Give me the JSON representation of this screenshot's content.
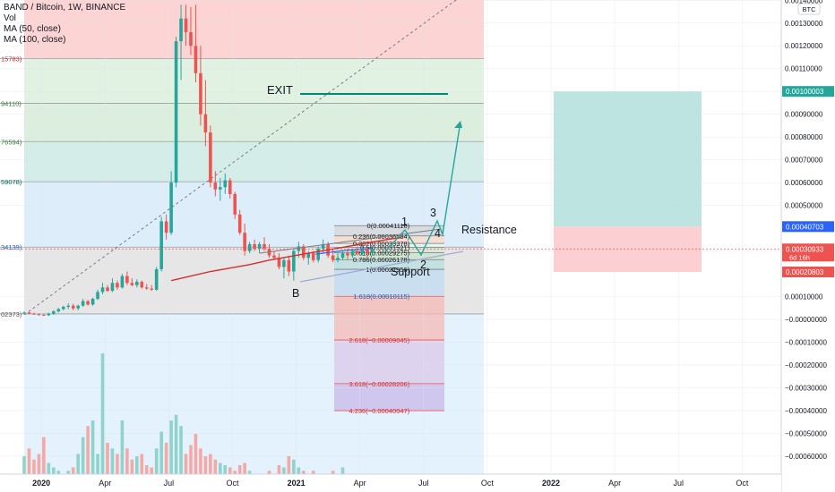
{
  "header": {
    "symbol_line": "BAND / Bitcoin, 1W, BINANCE",
    "vol_label": "Vol",
    "ma50_label": "MA (50, close)",
    "ma100_label": "MA (100, close)"
  },
  "chart_data": {
    "type": "candlestick",
    "currency_badge": "BTC",
    "y_axis": {
      "range": [
        -0.0007,
        0.00138
      ],
      "ticks": [
        {
          "v": 0.0014,
          "label": "0.00140000"
        },
        {
          "v": 0.0013,
          "label": "0.00130000"
        },
        {
          "v": 0.0012,
          "label": "0.00120000"
        },
        {
          "v": 0.0011,
          "label": "0.00110000"
        },
        {
          "v": 0.001,
          "label": "0.00100000"
        },
        {
          "v": 0.0009,
          "label": "0.00090000"
        },
        {
          "v": 0.0008,
          "label": "0.00080000"
        },
        {
          "v": 0.0007,
          "label": "0.00070000"
        },
        {
          "v": 0.0006,
          "label": "0.00060000"
        },
        {
          "v": 0.0005,
          "label": "0.00050000"
        },
        {
          "v": 0.0003,
          "label": "0.00030000"
        },
        {
          "v": 0.0001,
          "label": "0.00010000"
        },
        {
          "v": 0.0,
          "label": "−0.00000000"
        },
        {
          "v": -0.0001,
          "label": "−0.00010000"
        },
        {
          "v": -0.0002,
          "label": "−0.00020000"
        },
        {
          "v": -0.0003,
          "label": "−0.00030000"
        },
        {
          "v": -0.0004,
          "label": "−0.00040000"
        },
        {
          "v": -0.0005,
          "label": "−0.00050000"
        },
        {
          "v": -0.0006,
          "label": "−0.00060000"
        }
      ],
      "price_tags": [
        {
          "v": 0.001,
          "label": "0.00100003",
          "color": "#26a69a"
        },
        {
          "v": 0.000407,
          "label": "0.00040703",
          "color": "#2962ff"
        },
        {
          "v": 0.000309,
          "label": "0.00030933",
          "sub": "6d 16h",
          "color": "#ef5350"
        },
        {
          "v": 0.000208,
          "label": "0.00020803",
          "color": "#ef5350"
        }
      ]
    },
    "x_axis": {
      "ticks": [
        {
          "t": 3.5,
          "label": "2020",
          "bold": true
        },
        {
          "t": 16.5,
          "label": "Apr"
        },
        {
          "t": 29.5,
          "label": "Jul"
        },
        {
          "t": 42.5,
          "label": "Oct"
        },
        {
          "t": 55.5,
          "label": "2021",
          "bold": true
        },
        {
          "t": 68.5,
          "label": "Apr"
        },
        {
          "t": 81.5,
          "label": "Jul"
        },
        {
          "t": 94.5,
          "label": "Oct"
        },
        {
          "t": 107.5,
          "label": "2022",
          "bold": true
        },
        {
          "t": 120.5,
          "label": "Apr"
        },
        {
          "t": 133.5,
          "label": "Jul"
        },
        {
          "t": 146.5,
          "label": "Oct"
        }
      ]
    },
    "candles": [
      [
        3e-05,
        3.5e-05,
        2.5e-05,
        3e-05,
        2.8
      ],
      [
        3e-05,
        3.2e-05,
        2.2e-05,
        2.5e-05,
        3.5
      ],
      [
        2.5e-05,
        3e-05,
        2e-05,
        2.2e-05,
        2.5
      ],
      [
        2.2e-05,
        2.6e-05,
        1.8e-05,
        2e-05,
        3.0
      ],
      [
        2e-05,
        2.4e-05,
        1.6e-05,
        1.8e-05,
        4.5
      ],
      [
        1.8e-05,
        3e-05,
        1.5e-05,
        2.5e-05,
        2.2
      ],
      [
        2.5e-05,
        4e-05,
        2e-05,
        3.5e-05,
        1.8
      ],
      [
        3.5e-05,
        5e-05,
        3e-05,
        4.5e-05,
        1.5
      ],
      [
        4.5e-05,
        6e-05,
        4e-05,
        5.5e-05,
        1.2
      ],
      [
        5.5e-05,
        7e-05,
        4.5e-05,
        6e-05,
        1.5
      ],
      [
        6e-05,
        6.8e-05,
        4e-05,
        4.8e-05,
        1.8
      ],
      [
        4.8e-05,
        6.5e-05,
        4e-05,
        6e-05,
        3.0
      ],
      [
        6e-05,
        9e-05,
        5.5e-05,
        8e-05,
        4.5
      ],
      [
        8e-05,
        8.5e-05,
        6e-05,
        6.5e-05,
        5.5
      ],
      [
        6.5e-05,
        9.5e-05,
        6e-05,
        9e-05,
        6.0
      ],
      [
        9e-05,
        0.00013,
        8.5e-05,
        0.00012,
        3.0
      ],
      [
        0.00012,
        0.00016,
        0.00011,
        0.00014,
        12.0
      ],
      [
        0.00014,
        0.00015,
        0.00012,
        0.000125,
        4.0
      ],
      [
        0.000125,
        0.00018,
        0.00012,
        0.00016,
        3.5
      ],
      [
        0.00016,
        0.00017,
        0.00013,
        0.00014,
        3.0
      ],
      [
        0.00014,
        0.0002,
        0.000135,
        0.00019,
        6.0
      ],
      [
        0.00019,
        0.00021,
        0.00015,
        0.00016,
        3.5
      ],
      [
        0.00016,
        0.00018,
        0.000145,
        0.00015,
        2.5
      ],
      [
        0.00015,
        0.000175,
        0.00014,
        0.000165,
        2.8
      ],
      [
        0.000165,
        0.00017,
        0.000135,
        0.00014,
        3.0
      ],
      [
        0.00014,
        0.000155,
        0.00013,
        0.000135,
        2.0
      ],
      [
        0.000135,
        0.00015,
        0.000125,
        0.00013,
        1.8
      ],
      [
        0.00013,
        0.00023,
        0.000125,
        0.00022,
        3.5
      ],
      [
        0.00022,
        0.00045,
        0.00021,
        0.00043,
        5.0
      ],
      [
        0.00043,
        0.00046,
        0.00035,
        0.00038,
        4.0
      ],
      [
        0.00038,
        0.00065,
        0.00037,
        0.0006,
        6.0
      ],
      [
        0.0006,
        0.00124,
        0.00058,
        0.00122,
        6.5
      ],
      [
        0.00122,
        0.00138,
        0.00105,
        0.00132,
        5.5
      ],
      [
        0.00132,
        0.00138,
        0.0012,
        0.00126,
        3.0
      ],
      [
        0.00126,
        0.00137,
        0.00116,
        0.0012,
        3.8
      ],
      [
        0.0012,
        0.00138,
        0.00104,
        0.00108,
        4.8
      ],
      [
        0.00108,
        0.0012,
        0.00085,
        0.0009,
        3.5
      ],
      [
        0.0009,
        0.00105,
        0.00076,
        0.00082,
        2.8
      ],
      [
        0.00082,
        0.00085,
        0.00058,
        0.0006,
        3.0
      ],
      [
        0.0006,
        0.00065,
        0.00054,
        0.00057,
        2.5
      ],
      [
        0.00057,
        0.00062,
        0.00052,
        0.00058,
        2.2
      ],
      [
        0.00058,
        0.00064,
        0.00055,
        0.00061,
        2.0
      ],
      [
        0.00061,
        0.00062,
        0.00053,
        0.00055,
        1.8
      ],
      [
        0.00055,
        0.00056,
        0.00044,
        0.00046,
        1.5
      ],
      [
        0.00046,
        0.00048,
        0.00037,
        0.00038,
        2.0
      ],
      [
        0.00038,
        0.00042,
        0.00028,
        0.0003,
        2.2
      ],
      [
        0.0003,
        0.00034,
        0.00029,
        0.00033,
        1.5
      ],
      [
        0.00033,
        0.00035,
        0.0003,
        0.00031,
        1.2
      ],
      [
        0.00031,
        0.00034,
        0.00029,
        0.00033,
        1.0
      ],
      [
        0.00033,
        0.00036,
        0.0003,
        0.00031,
        1.0
      ],
      [
        0.00031,
        0.00033,
        0.00027,
        0.00028,
        1.5
      ],
      [
        0.00028,
        0.0003,
        0.00026,
        0.00027,
        1.2
      ],
      [
        0.00027,
        0.00029,
        0.00022,
        0.00023,
        2.0
      ],
      [
        0.00023,
        0.00027,
        0.00018,
        0.00026,
        1.8
      ],
      [
        0.00026,
        0.00028,
        0.00019,
        0.00021,
        2.8
      ],
      [
        0.00021,
        0.00031,
        0.00017,
        0.0003,
        2.5
      ],
      [
        0.0003,
        0.00034,
        0.00027,
        0.00032,
        1.8
      ],
      [
        0.00032,
        0.00033,
        0.00026,
        0.00027,
        1.5
      ],
      [
        0.00027,
        0.0003,
        0.00024,
        0.00029,
        1.2
      ],
      [
        0.00029,
        0.0003,
        0.00025,
        0.00026,
        1.5
      ],
      [
        0.00026,
        0.00032,
        0.00025,
        0.00031,
        1.2
      ],
      [
        0.00031,
        0.00035,
        0.00029,
        0.00033,
        1.0
      ],
      [
        0.00033,
        0.00034,
        0.00027,
        0.00028,
        1.2
      ],
      [
        0.00028,
        0.00031,
        0.00025,
        0.00026,
        1.5
      ],
      [
        0.00026,
        0.00029,
        0.00025,
        0.00027,
        1.0
      ],
      [
        0.00027,
        0.0003,
        0.00026,
        0.00029,
        1.8
      ],
      [
        0.00029,
        0.00031,
        0.00026,
        0.00028,
        1.2
      ],
      [
        0.00028,
        0.00031,
        0.00027,
        0.0003,
        1.0
      ],
      [
        0.0003,
        0.00032,
        0.00028,
        0.00029,
        1.2
      ],
      [
        0.00029,
        0.00032,
        0.00028,
        0.00031,
        1.0
      ],
      [
        0.00031,
        0.00033,
        0.00027,
        0.00029,
        0.8
      ],
      [
        0.00029,
        0.00031,
        0.00028,
        0.000309,
        0.5
      ]
    ],
    "ma50": [
      [
        30,
        0.00017
      ],
      [
        34,
        0.00019
      ],
      [
        38,
        0.00021
      ],
      [
        42,
        0.000225
      ],
      [
        46,
        0.00024
      ],
      [
        50,
        0.00026
      ],
      [
        54,
        0.000275
      ],
      [
        58,
        0.00029
      ],
      [
        62,
        0.000305
      ],
      [
        66,
        0.00032
      ],
      [
        70,
        0.000335
      ],
      [
        74,
        0.00035
      ],
      [
        77,
        0.00036
      ]
    ],
    "ma100": [
      [
        59.5,
        0.000286
      ],
      [
        62,
        0.000293
      ],
      [
        65,
        0.000301
      ],
      [
        68,
        0.000307
      ],
      [
        71,
        0.000312
      ]
    ],
    "fibonacci": {
      "label_x": 79.2,
      "levels": [
        {
          "v": 0.00041116,
          "label": "0(0.00041116)"
        },
        {
          "v": 0.00036594,
          "label": "0.236(0.00036594)"
        },
        {
          "v": 0.000333,
          "label": "0.382(0.00033378)"
        },
        {
          "v": 0.000316,
          "label": "0.5(0.00031521)"
        },
        {
          "v": 0.00029275,
          "label": "0.618(0.00029275)"
        },
        {
          "v": 0.000262,
          "label": "0.786(0.00026178)"
        },
        {
          "v": 0.00021956,
          "label": "1(0.00021956)"
        },
        {
          "v": 0.00010115,
          "label": "1.618(0.00010115)"
        },
        {
          "v": -9.045e-05,
          "label": "2.618(−0.00009045)"
        },
        {
          "v": -0.00028206,
          "label": "3.618(−0.00028206)"
        },
        {
          "v": -0.00040047,
          "label": "4.236(−0.00040047)"
        }
      ]
    },
    "left_fib_labels": [
      {
        "v": 0.001144,
        "label": "15783)"
      },
      {
        "v": 0.000948,
        "label": "94110)"
      },
      {
        "v": 0.00078,
        "label": "76594)"
      },
      {
        "v": 0.000604,
        "label": "59078)"
      },
      {
        "v": 0.000317,
        "label": "34139)"
      },
      {
        "v": 2.37e-05,
        "label": "02373)"
      }
    ],
    "annotations": {
      "exit": "EXIT",
      "resistance": "Resistance",
      "support": "Support",
      "point_b": "B",
      "wave_1": "1",
      "wave_2": "2",
      "wave_3": "3",
      "wave_4": "4"
    }
  }
}
